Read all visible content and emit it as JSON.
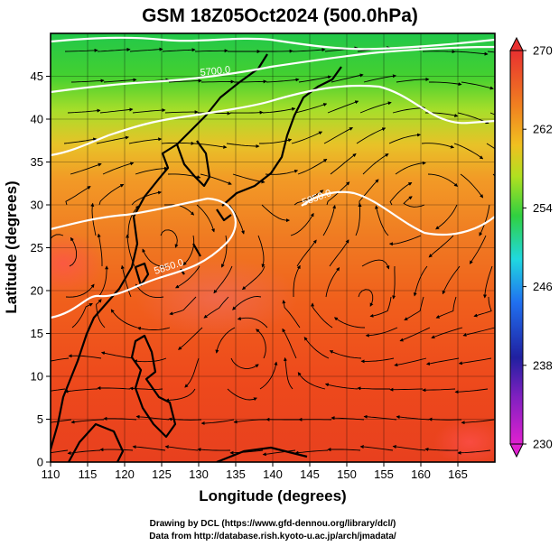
{
  "title": "GSM 18Z05Oct2024 (500.0hPa)",
  "x_axis": {
    "label": "Longitude (degrees)",
    "ticks": [
      "110",
      "115",
      "120",
      "125",
      "130",
      "135",
      "140",
      "145",
      "150",
      "155",
      "160",
      "165"
    ]
  },
  "y_axis": {
    "label": "Latitude  (degrees)",
    "ticks": [
      "0",
      "5",
      "10",
      "15",
      "20",
      "25",
      "30",
      "35",
      "40",
      "45"
    ]
  },
  "colorbar": {
    "ticks": [
      "230",
      "238",
      "246",
      "254",
      "262",
      "270"
    ],
    "range": [
      230,
      270
    ],
    "stops": [
      "#e020d0",
      "#2020a0",
      "#2080ff",
      "#20e0e0",
      "#30d030",
      "#c8e020",
      "#f0a020",
      "#f06020",
      "#e83030"
    ]
  },
  "contour_labels": [
    "5700.0",
    "5850.0",
    "5850.0"
  ],
  "credits": {
    "line1": "Drawing by DCL (https://www.gfd-dennou.org/library/dcl/)",
    "line2": "Data from http://database.rish.kyoto-u.ac.jp/arch/jmadata/"
  }
}
